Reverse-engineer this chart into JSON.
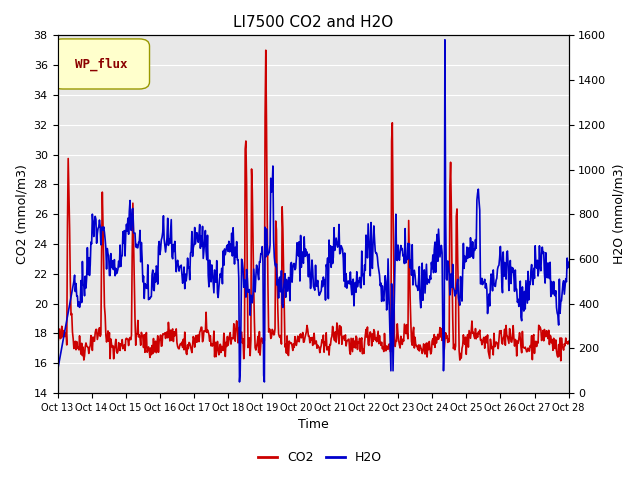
{
  "title": "LI7500 CO2 and H2O",
  "xlabel": "Time",
  "ylabel_left": "CO2 (mmol/m3)",
  "ylabel_right": "H2O (mmol/m3)",
  "legend_label": "WP_flux",
  "co2_color": "#cc0000",
  "h2o_color": "#0000cc",
  "ylim_left": [
    14,
    38
  ],
  "ylim_right": [
    0,
    1600
  ],
  "yticks_left": [
    14,
    16,
    18,
    20,
    22,
    24,
    26,
    28,
    30,
    32,
    34,
    36,
    38
  ],
  "yticks_right": [
    0,
    200,
    400,
    600,
    800,
    1000,
    1200,
    1400,
    1600
  ],
  "xtick_labels": [
    "Oct 13",
    "Oct 14",
    "Oct 15",
    "Oct 16",
    "Oct 17",
    "Oct 18",
    "Oct 19",
    "Oct 20",
    "Oct 21",
    "Oct 22",
    "Oct 23",
    "Oct 24",
    "Oct 25",
    "Oct 26",
    "Oct 27",
    "Oct 28"
  ],
  "bg_color": "#e8e8e8",
  "fig_bg_color": "#ffffff",
  "grid_color": "#ffffff",
  "line_width": 1.2,
  "legend_box_color": "#ffffcc",
  "legend_text_color": "#8b0000"
}
